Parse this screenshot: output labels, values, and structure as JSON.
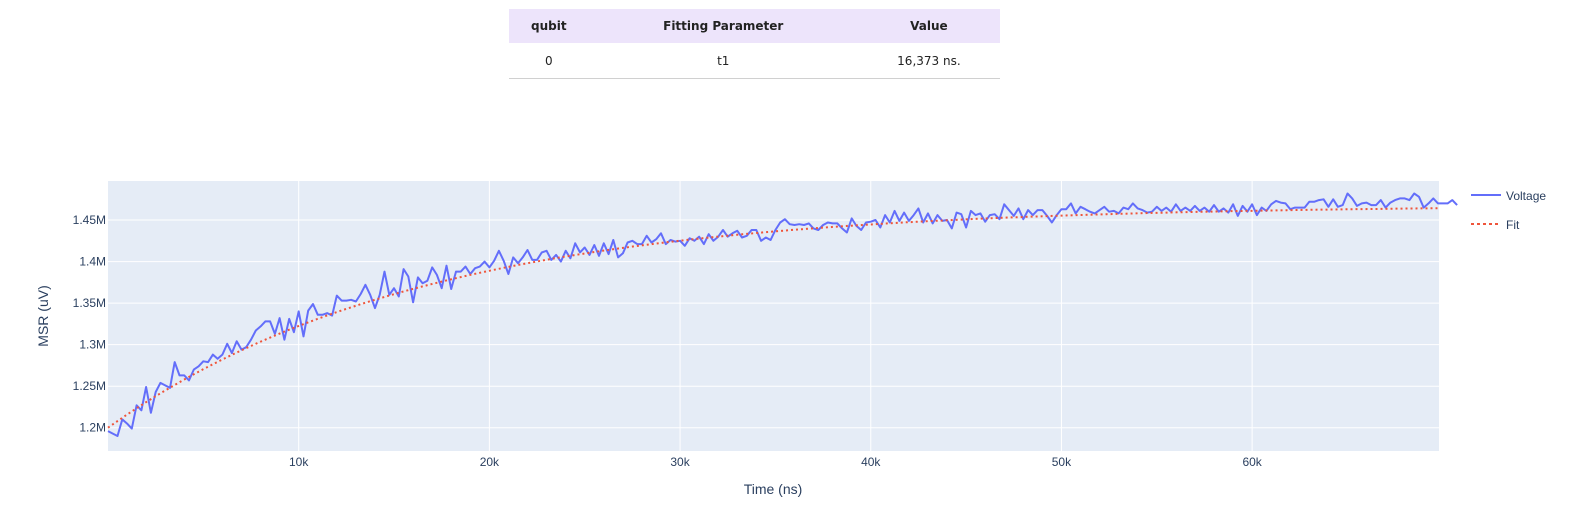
{
  "table": {
    "headers": [
      "qubit",
      "Fitting Parameter",
      "Value"
    ],
    "rows": [
      [
        "0",
        "t1",
        "16,373 ns."
      ]
    ]
  },
  "chart_data": {
    "type": "line",
    "xlabel": "Time (ns)",
    "ylabel": "MSR (uV)",
    "xlim": [
      0,
      69800
    ],
    "ylim": [
      1172000,
      1497000
    ],
    "x_ticks": [
      10000,
      20000,
      30000,
      40000,
      50000,
      60000
    ],
    "x_tick_labels": [
      "10k",
      "20k",
      "30k",
      "40k",
      "50k",
      "60k"
    ],
    "y_ticks": [
      1200000,
      1250000,
      1300000,
      1350000,
      1400000,
      1450000
    ],
    "y_tick_labels": [
      "1.2M",
      "1.25M",
      "1.3M",
      "1.35M",
      "1.4M",
      "1.45M"
    ],
    "grid": true,
    "legend_position": "top-right",
    "plot_background": "#e5ecf6",
    "series": [
      {
        "name": "Voltage",
        "style": "solid",
        "color": "#636efa",
        "x_start": 0,
        "x_step": 250,
        "values": [
          1196000,
          1193000,
          1190000,
          1210000,
          1205000,
          1199000,
          1227000,
          1221000,
          1249000,
          1218000,
          1243000,
          1254000,
          1251000,
          1248000,
          1279000,
          1263000,
          1263000,
          1257000,
          1270000,
          1274000,
          1280000,
          1279000,
          1288000,
          1283000,
          1288000,
          1301000,
          1290000,
          1304000,
          1294000,
          1297000,
          1306000,
          1317000,
          1322000,
          1328000,
          1328000,
          1313000,
          1332000,
          1306000,
          1331000,
          1315000,
          1340000,
          1310000,
          1341000,
          1349000,
          1336000,
          1336000,
          1338000,
          1335000,
          1359000,
          1353000,
          1353000,
          1354000,
          1352000,
          1361000,
          1372000,
          1360000,
          1344000,
          1360000,
          1388000,
          1360000,
          1368000,
          1358000,
          1391000,
          1382000,
          1351000,
          1381000,
          1374000,
          1377000,
          1393000,
          1384000,
          1368000,
          1395000,
          1367000,
          1388000,
          1388000,
          1394000,
          1385000,
          1392000,
          1394000,
          1400000,
          1393000,
          1401000,
          1413000,
          1401000,
          1385000,
          1405000,
          1398000,
          1405000,
          1414000,
          1402000,
          1402000,
          1411000,
          1413000,
          1402000,
          1408000,
          1400000,
          1413000,
          1404000,
          1422000,
          1411000,
          1417000,
          1408000,
          1420000,
          1407000,
          1422000,
          1409000,
          1426000,
          1405000,
          1410000,
          1423000,
          1425000,
          1421000,
          1421000,
          1431000,
          1423000,
          1427000,
          1434000,
          1421000,
          1426000,
          1424000,
          1425000,
          1419000,
          1428000,
          1425000,
          1430000,
          1421000,
          1433000,
          1425000,
          1430000,
          1438000,
          1430000,
          1434000,
          1437000,
          1429000,
          1431000,
          1438000,
          1438000,
          1425000,
          1429000,
          1426000,
          1438000,
          1447000,
          1451000,
          1445000,
          1444000,
          1445000,
          1444000,
          1446000,
          1440000,
          1438000,
          1444000,
          1447000,
          1446000,
          1446000,
          1440000,
          1435000,
          1452000,
          1443000,
          1438000,
          1447000,
          1448000,
          1450000,
          1441000,
          1456000,
          1447000,
          1461000,
          1449000,
          1459000,
          1449000,
          1456000,
          1464000,
          1447000,
          1458000,
          1446000,
          1456000,
          1449000,
          1450000,
          1440000,
          1459000,
          1457000,
          1441000,
          1461000,
          1456000,
          1458000,
          1448000,
          1456000,
          1457000,
          1451000,
          1469000,
          1462000,
          1455000,
          1464000,
          1451000,
          1462000,
          1456000,
          1462000,
          1462000,
          1455000,
          1447000,
          1456000,
          1463000,
          1463000,
          1470000,
          1458000,
          1466000,
          1463000,
          1460000,
          1458000,
          1462000,
          1466000,
          1460000,
          1461000,
          1458000,
          1465000,
          1463000,
          1470000,
          1464000,
          1462000,
          1459000,
          1460000,
          1466000,
          1461000,
          1465000,
          1460000,
          1469000,
          1461000,
          1465000,
          1461000,
          1467000,
          1461000,
          1465000,
          1460000,
          1468000,
          1460000,
          1464000,
          1459000,
          1469000,
          1455000,
          1467000,
          1460000,
          1469000,
          1456000,
          1465000,
          1461000,
          1469000,
          1473000,
          1471000,
          1470000,
          1463000,
          1465000,
          1465000,
          1465000,
          1472000,
          1472000,
          1474000,
          1475000,
          1466000,
          1475000,
          1466000,
          1468000,
          1482000,
          1476000,
          1467000,
          1470000,
          1471000,
          1468000,
          1468000,
          1474000,
          1465000,
          1471000,
          1474000,
          1476000,
          1476000,
          1474000,
          1482000,
          1478000,
          1465000,
          1470000,
          1476000,
          1470000,
          1470000,
          1470000,
          1474000,
          1468000
        ]
      },
      {
        "name": "Fit",
        "style": "dotted",
        "color": "#ef553b",
        "function": {
          "form": "A - B*exp(-x/T1)",
          "A": 1468000,
          "B": 268000,
          "T1": 16373
        },
        "x_range": [
          0,
          69800
        ],
        "samples": 141
      }
    ]
  }
}
